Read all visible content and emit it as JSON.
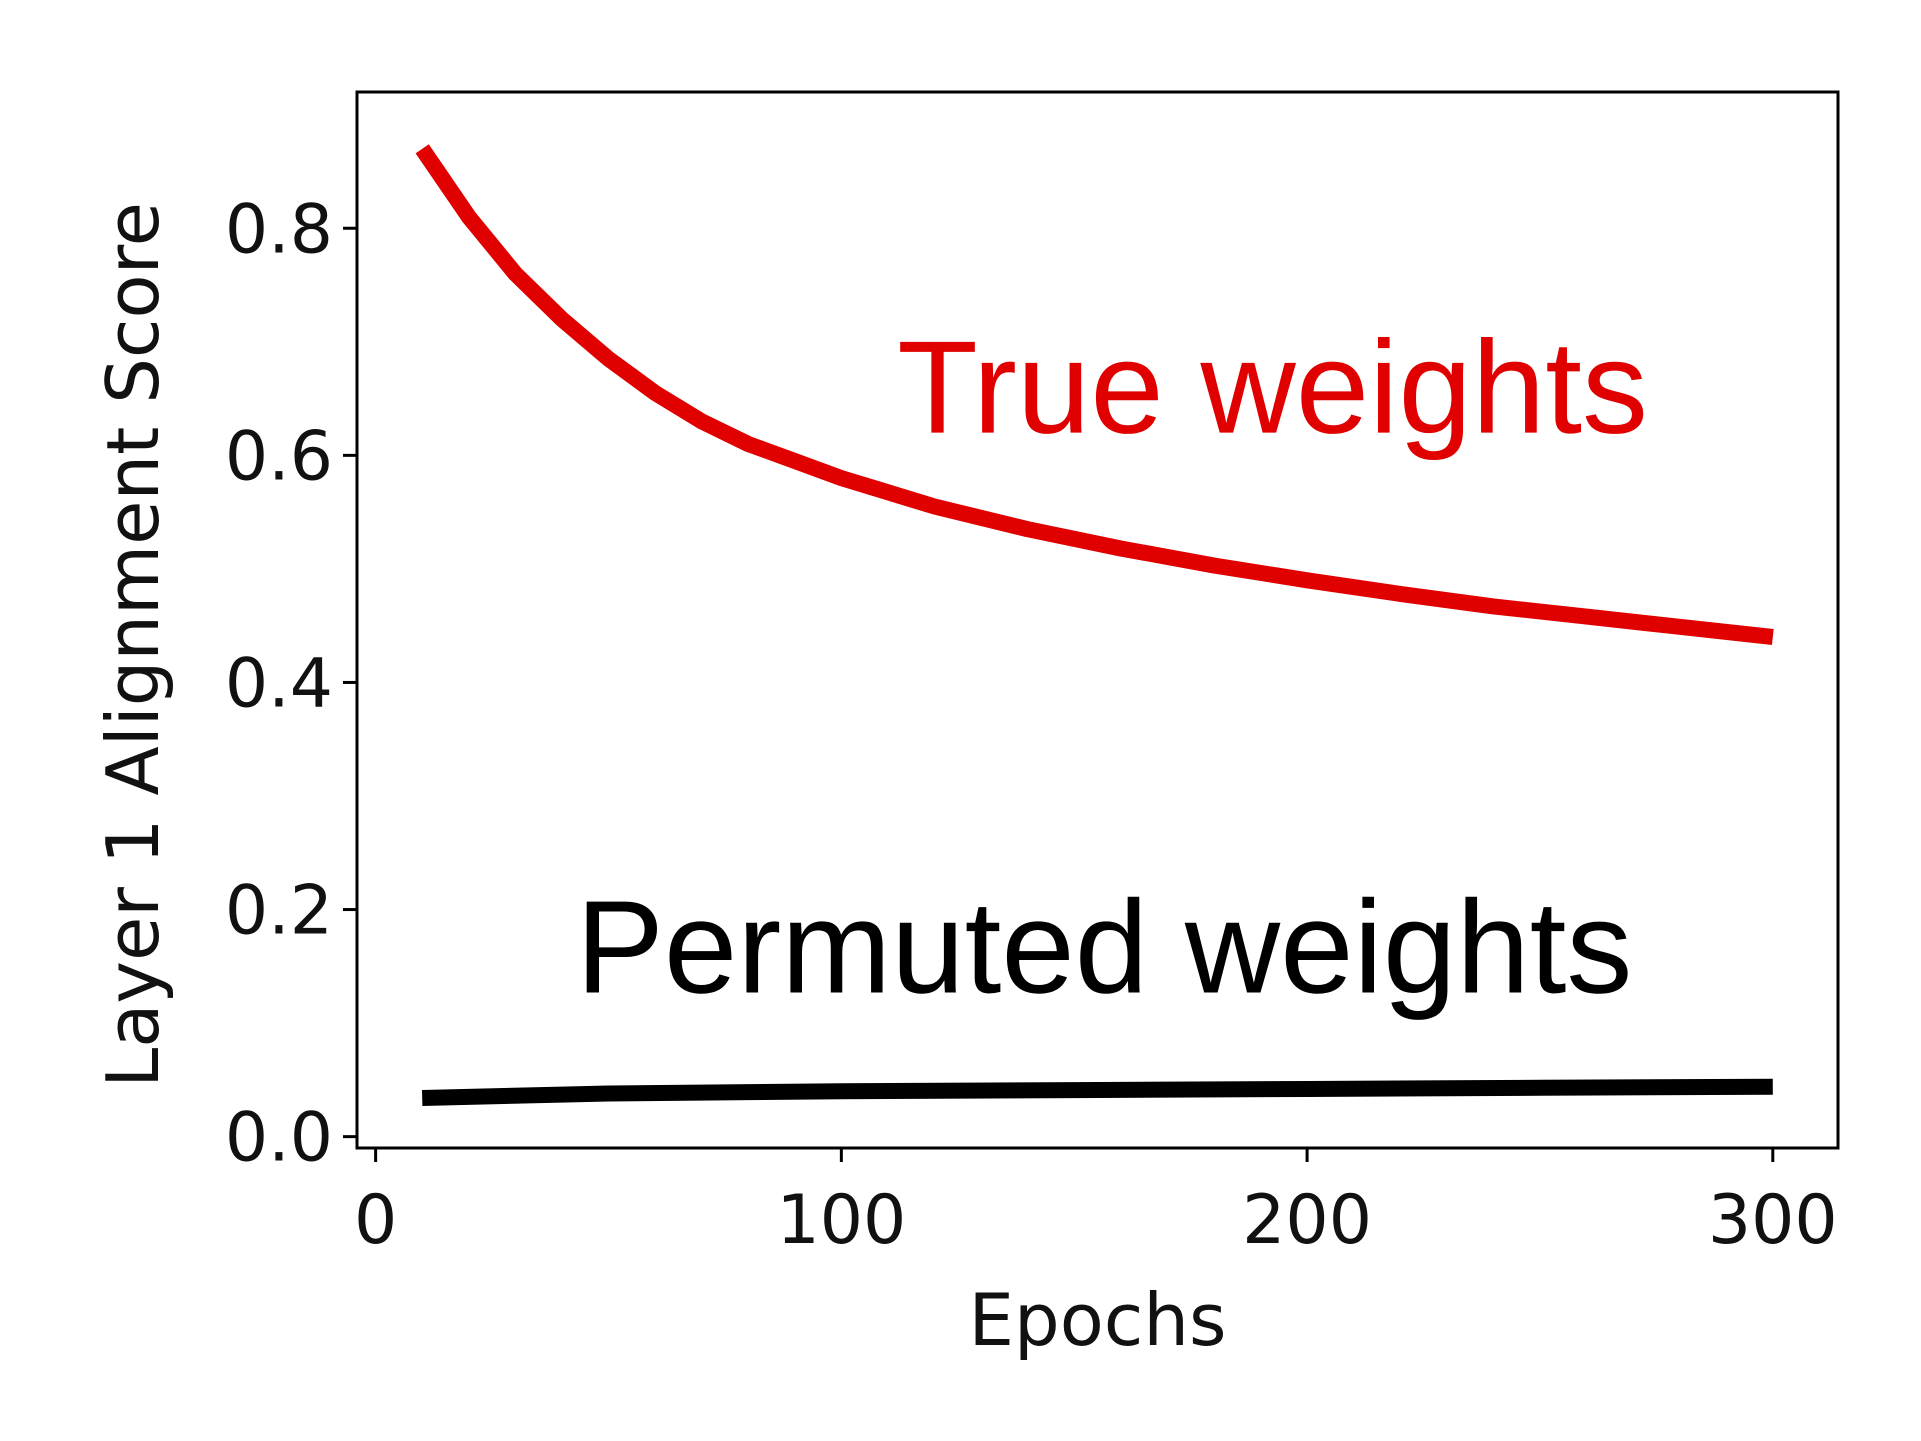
{
  "chart_data": {
    "type": "line",
    "title": "",
    "xlabel": "Epochs",
    "ylabel": "Layer 1 Alignment Score",
    "xlim": [
      -4,
      314
    ],
    "ylim": [
      -0.01,
      0.92
    ],
    "xticks": [
      0,
      100,
      200,
      300
    ],
    "xtick_labels": [
      "0",
      "100",
      "200",
      "300"
    ],
    "yticks": [
      0.0,
      0.2,
      0.4,
      0.6,
      0.8
    ],
    "ytick_labels": [
      "0.0",
      "0.2",
      "0.4",
      "0.6",
      "0.8"
    ],
    "grid": false,
    "legend": "none",
    "series": [
      {
        "color": "#e00000",
        "x": [
          10,
          20,
          30,
          40,
          50,
          60,
          70,
          80,
          90,
          100,
          120,
          140,
          160,
          180,
          200,
          220,
          240,
          260,
          280,
          300
        ],
        "y": [
          0.87,
          0.81,
          0.76,
          0.72,
          0.685,
          0.655,
          0.63,
          0.61,
          0.595,
          0.58,
          0.555,
          0.535,
          0.518,
          0.503,
          0.49,
          0.478,
          0.467,
          0.458,
          0.449,
          0.44
        ]
      },
      {
        "color": "#000000",
        "x": [
          10,
          50,
          100,
          150,
          200,
          250,
          300
        ],
        "y": [
          0.034,
          0.038,
          0.04,
          0.041,
          0.042,
          0.043,
          0.044
        ]
      }
    ],
    "annotations": [
      {
        "text": "True weights",
        "color": "#e00000",
        "x": 112,
        "y": 0.62
      },
      {
        "text": "Permuted weights",
        "color": "#000000",
        "x": 43,
        "y": 0.127
      }
    ]
  }
}
